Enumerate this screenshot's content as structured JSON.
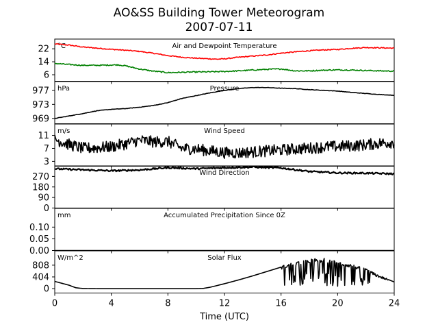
{
  "figure": {
    "title_line1": "AO&SS Building Tower Meteorogram",
    "title_line2": "2007-07-11"
  },
  "chart_data": {
    "type": "line",
    "title": "AO&SS Building Tower Meteorogram",
    "subtitle": "2007-07-11",
    "xlabel": "Time (UTC)",
    "xlim": [
      0,
      24
    ],
    "x_ticks": [
      0,
      4,
      8,
      12,
      16,
      20,
      24
    ],
    "panels": [
      {
        "id": "temp",
        "title": "Air and Dewpoint Temperature",
        "unit": "°C",
        "ylim": [
          2,
          28
        ],
        "yticks": [
          6,
          14,
          22
        ],
        "series": [
          {
            "color": "#ff0000",
            "noise": 0.3,
            "points": [
              [
                0,
                25.0
              ],
              [
                1,
                24.3
              ],
              [
                2,
                23.1
              ],
              [
                3,
                22.4
              ],
              [
                4,
                21.7
              ],
              [
                5,
                21.1
              ],
              [
                6,
                20.4
              ],
              [
                7,
                19.2
              ],
              [
                8,
                17.8
              ],
              [
                9,
                16.8
              ],
              [
                10,
                16.2
              ],
              [
                11,
                15.8
              ],
              [
                11.5,
                15.6
              ],
              [
                12,
                15.8
              ],
              [
                13,
                16.8
              ],
              [
                14,
                17.5
              ],
              [
                15,
                18.2
              ],
              [
                16,
                19.3
              ],
              [
                17,
                20.1
              ],
              [
                18,
                20.8
              ],
              [
                19,
                21.3
              ],
              [
                20,
                21.6
              ],
              [
                21,
                22.3
              ],
              [
                22,
                22.8
              ],
              [
                23,
                22.6
              ],
              [
                24,
                22.4
              ]
            ]
          },
          {
            "color": "#008000",
            "noise": 0.35,
            "points": [
              [
                0,
                13.0
              ],
              [
                1,
                12.3
              ],
              [
                2,
                11.8
              ],
              [
                3,
                11.8
              ],
              [
                4,
                12.0
              ],
              [
                4.5,
                12.1
              ],
              [
                5,
                11.5
              ],
              [
                6,
                9.5
              ],
              [
                7,
                8.2
              ],
              [
                8,
                7.3
              ],
              [
                9,
                7.5
              ],
              [
                10,
                7.7
              ],
              [
                11,
                7.8
              ],
              [
                12,
                8.0
              ],
              [
                13,
                8.4
              ],
              [
                14,
                8.9
              ],
              [
                15,
                9.3
              ],
              [
                16,
                9.6
              ],
              [
                17,
                8.4
              ],
              [
                18,
                8.4
              ],
              [
                19,
                8.8
              ],
              [
                20,
                9.0
              ],
              [
                21,
                8.9
              ],
              [
                22,
                8.6
              ],
              [
                23,
                8.4
              ],
              [
                24,
                8.2
              ]
            ]
          }
        ]
      },
      {
        "id": "pres",
        "title": "Pressure",
        "unit": "hPa",
        "ylim": [
          967.5,
          979.5
        ],
        "yticks": [
          969,
          973,
          977
        ],
        "series": [
          {
            "color": "#000000",
            "noise": 0.06,
            "points": [
              [
                0,
                969.0
              ],
              [
                1,
                969.7
              ],
              [
                2,
                970.4
              ],
              [
                3,
                971.2
              ],
              [
                4,
                971.6
              ],
              [
                5,
                971.8
              ],
              [
                6,
                972.2
              ],
              [
                7,
                972.7
              ],
              [
                8,
                973.5
              ],
              [
                9,
                974.7
              ],
              [
                10,
                975.5
              ],
              [
                11,
                976.3
              ],
              [
                12,
                977.0
              ],
              [
                13,
                977.5
              ],
              [
                14,
                977.8
              ],
              [
                15,
                977.8
              ],
              [
                16,
                977.6
              ],
              [
                17,
                977.5
              ],
              [
                18,
                977.2
              ],
              [
                19,
                977.0
              ],
              [
                20,
                976.8
              ],
              [
                21,
                976.4
              ],
              [
                22,
                976.1
              ],
              [
                23,
                975.8
              ],
              [
                24,
                975.6
              ]
            ]
          }
        ]
      },
      {
        "id": "wspd",
        "title": "Wind Speed",
        "unit": "m/s",
        "ylim": [
          1.5,
          14.5
        ],
        "yticks": [
          3,
          7,
          11
        ],
        "series": [
          {
            "color": "#000000",
            "noise": 1.8,
            "points": [
              [
                0,
                9.8
              ],
              [
                1,
                8.2
              ],
              [
                2,
                7.0
              ],
              [
                3,
                7.2
              ],
              [
                4,
                7.5
              ],
              [
                5,
                8.4
              ],
              [
                6,
                9.5
              ],
              [
                7,
                9.0
              ],
              [
                8,
                9.1
              ],
              [
                9,
                7.0
              ],
              [
                10,
                6.8
              ],
              [
                11,
                6.2
              ],
              [
                12,
                5.7
              ],
              [
                13,
                5.6
              ],
              [
                14,
                5.9
              ],
              [
                15,
                6.2
              ],
              [
                16,
                6.5
              ],
              [
                17,
                6.8
              ],
              [
                18,
                7.1
              ],
              [
                19,
                7.4
              ],
              [
                20,
                7.6
              ],
              [
                21,
                7.8
              ],
              [
                22,
                8.1
              ],
              [
                23,
                8.6
              ],
              [
                24,
                8.9
              ]
            ]
          }
        ]
      },
      {
        "id": "wdir",
        "title": "Wind Direction",
        "unit": "",
        "ylim": [
          0,
          360
        ],
        "yticks": [
          0,
          90,
          180,
          270
        ],
        "series": [
          {
            "color": "#000000",
            "noise": 7,
            "points": [
              [
                0,
                335
              ],
              [
                2,
                326
              ],
              [
                4,
                318
              ],
              [
                6,
                325
              ],
              [
                8,
                345
              ],
              [
                10,
                336
              ],
              [
                12,
                344
              ],
              [
                14,
                350
              ],
              [
                16,
                342
              ],
              [
                18,
                312
              ],
              [
                20,
                300
              ],
              [
                22,
                298
              ],
              [
                24,
                292
              ]
            ]
          }
        ]
      },
      {
        "id": "prcp",
        "title": "Accumulated Precipitation Since 0Z",
        "unit": "mm",
        "ylim": [
          0,
          0.18
        ],
        "yticks": [
          0.0,
          0.05,
          0.1
        ],
        "ytick_labels": [
          "0.00",
          "0.05",
          "0.10"
        ],
        "series": [
          {
            "color": "#000000",
            "noise": 0,
            "points": [
              [
                0,
                0.0
              ],
              [
                24,
                0.0
              ]
            ]
          }
        ]
      },
      {
        "id": "solar",
        "title": "Solar Flux",
        "unit": "W/m^2",
        "ylim": [
          -150,
          1300
        ],
        "yticks": [
          0,
          404,
          808
        ],
        "series": [
          {
            "color": "#000000",
            "noise": 0,
            "points": [
              [
                0,
                250
              ],
              [
                1,
                120
              ],
              [
                1.5,
                30
              ],
              [
                2,
                5
              ],
              [
                3,
                0
              ],
              [
                4,
                0
              ],
              [
                6,
                0
              ],
              [
                8,
                0
              ],
              [
                10,
                0
              ],
              [
                10.5,
                8
              ],
              [
                11,
                50
              ],
              [
                12,
                170
              ],
              [
                13,
                300
              ],
              [
                14,
                440
              ],
              [
                15,
                590
              ],
              [
                16,
                740
              ],
              [
                17,
                880
              ],
              [
                18,
                980
              ],
              [
                19,
                1000
              ],
              [
                20,
                900
              ],
              [
                21,
                800
              ],
              [
                22,
                650
              ],
              [
                23,
                430
              ],
              [
                24,
                230
              ]
            ]
          }
        ]
      }
    ]
  }
}
